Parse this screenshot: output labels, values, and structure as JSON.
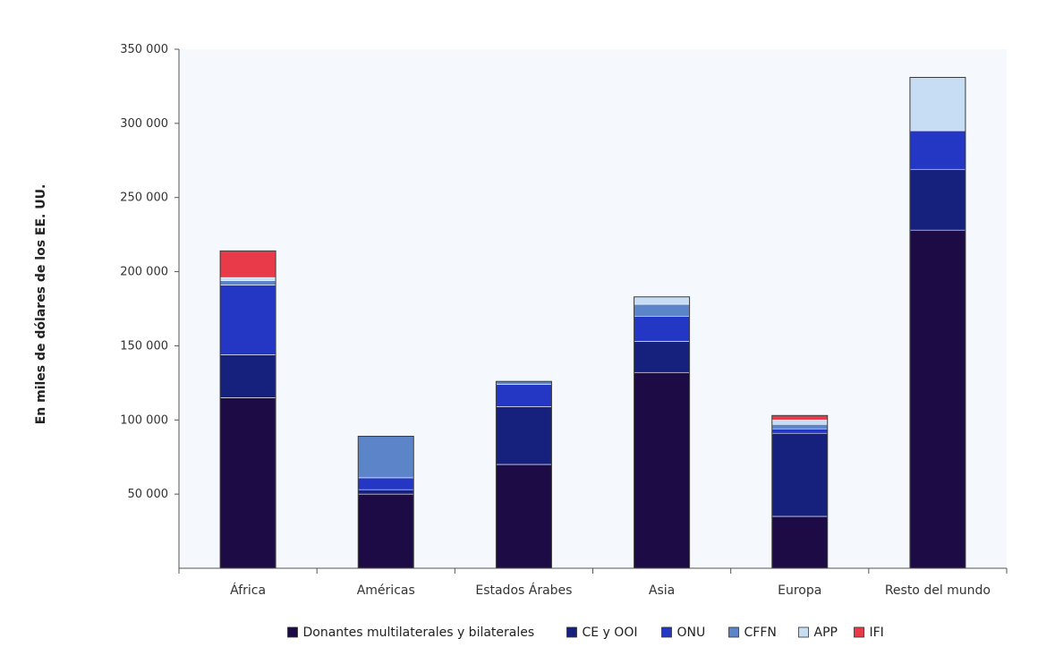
{
  "chart_data": {
    "type": "bar",
    "stacked": true,
    "ylabel": "En miles de dólares de los EE. UU.",
    "ylim": [
      0,
      350000
    ],
    "yticks": [
      50000,
      100000,
      150000,
      200000,
      250000,
      300000,
      350000
    ],
    "ytick_labels": [
      "50 000",
      "100 000",
      "150 000",
      "200 000",
      "250 000",
      "300 000",
      "350 000"
    ],
    "grid": false,
    "legend_position": "bottom",
    "categories": [
      "África",
      "Américas",
      "Estados Árabes",
      "Asia",
      "Europa",
      "Resto del mundo"
    ],
    "series": [
      {
        "name": "Donantes multilaterales y bilaterales",
        "color": "#1d0b45",
        "values": [
          115000,
          50000,
          70000,
          132000,
          35000,
          228000
        ]
      },
      {
        "name": "CE y OOI",
        "color": "#16217d",
        "values": [
          29000,
          3000,
          39000,
          21000,
          56000,
          41000
        ]
      },
      {
        "name": "ONU",
        "color": "#2436c4",
        "values": [
          47000,
          8000,
          15000,
          17000,
          3000,
          26000
        ]
      },
      {
        "name": "CFFN",
        "color": "#5b84c9",
        "values": [
          3000,
          28000,
          2000,
          8000,
          3000,
          0
        ]
      },
      {
        "name": "APP",
        "color": "#c7ddf4",
        "values": [
          2000,
          0,
          0,
          5000,
          3000,
          36000
        ]
      },
      {
        "name": "IFI",
        "color": "#e83a48",
        "values": [
          18000,
          0,
          0,
          0,
          3000,
          0
        ]
      }
    ]
  }
}
